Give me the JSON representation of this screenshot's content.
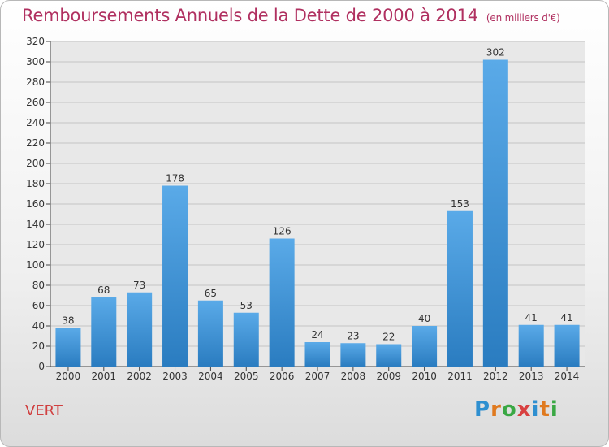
{
  "title": "Remboursements Annuels de la Dette de 2000 à 2014",
  "unit": "(en milliers d'€)",
  "commune": "VERT",
  "logo": {
    "letters": [
      "P",
      "r",
      "o",
      "x",
      "i",
      "t",
      "i"
    ],
    "colors": [
      "#2e8fd0",
      "#e07a1f",
      "#3aa844",
      "#d84040",
      "#2e8fd0",
      "#e07a1f",
      "#3aa844"
    ]
  },
  "colors": {
    "title": "#b03060",
    "bar_top": "#5aaae8",
    "bar_bottom": "#2a7cc0",
    "axis": "#444444"
  },
  "chart_data": {
    "type": "bar",
    "categories": [
      "2000",
      "2001",
      "2002",
      "2003",
      "2004",
      "2005",
      "2006",
      "2007",
      "2008",
      "2009",
      "2010",
      "2011",
      "2012",
      "2013",
      "2014"
    ],
    "values": [
      38,
      68,
      73,
      178,
      65,
      53,
      126,
      24,
      23,
      22,
      40,
      153,
      302,
      41,
      41
    ],
    "ylim": [
      0,
      320
    ],
    "yticks": [
      0,
      20,
      40,
      60,
      80,
      100,
      120,
      140,
      160,
      180,
      200,
      220,
      240,
      260,
      280,
      300,
      320
    ],
    "grid": true,
    "data_labels": true
  }
}
